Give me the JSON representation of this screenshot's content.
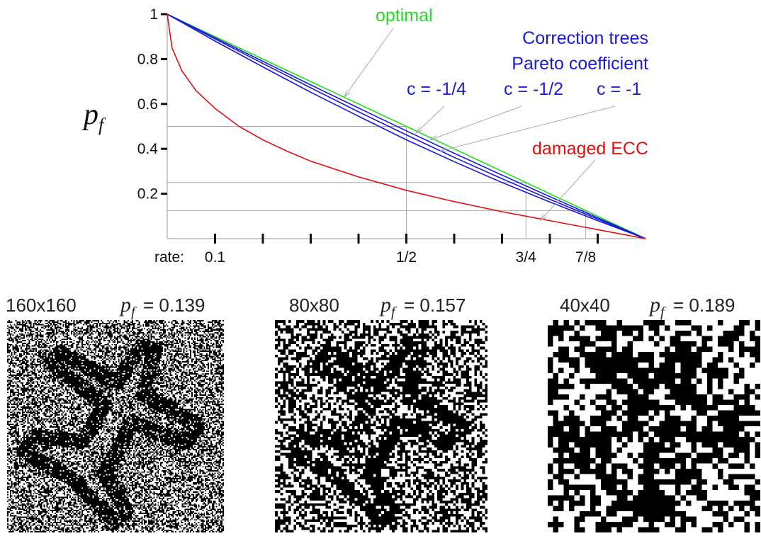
{
  "chart_data": {
    "type": "line",
    "ylabel_main": "p",
    "ylabel_sub": "f",
    "xlabel_prefix": "rate:",
    "xlim": [
      0,
      1
    ],
    "ylim": [
      0,
      1
    ],
    "y_ticks": [
      {
        "value": 1.0,
        "label": "1"
      },
      {
        "value": 0.8,
        "label": "0.8"
      },
      {
        "value": 0.6,
        "label": "0.6"
      },
      {
        "value": 0.4,
        "label": "0.4"
      },
      {
        "value": 0.2,
        "label": "0.2"
      }
    ],
    "x_ticks": [
      0.1,
      0.2,
      0.3,
      0.4,
      0.5,
      0.6,
      0.7,
      0.8,
      0.9
    ],
    "x_tick_labels": [
      {
        "value": 0.1,
        "label": "0.1"
      },
      {
        "value": 0.5,
        "label": "1/2"
      },
      {
        "value": 0.75,
        "label": "3/4"
      },
      {
        "value": 0.875,
        "label": "7/8"
      }
    ],
    "reference_lines": [
      {
        "rate": 0.5,
        "pf": 0.5
      },
      {
        "rate": 0.75,
        "pf": 0.25
      },
      {
        "rate": 0.875,
        "pf": 0.125
      }
    ],
    "series": [
      {
        "name": "optimal",
        "color": "#22dd22",
        "x": [
          0,
          0.1,
          0.2,
          0.3,
          0.4,
          0.5,
          0.6,
          0.7,
          0.8,
          0.9,
          1.0
        ],
        "y": [
          1.0,
          0.9,
          0.8,
          0.7,
          0.6,
          0.5,
          0.4,
          0.3,
          0.2,
          0.1,
          0.0
        ]
      },
      {
        "name": "c = -1/4",
        "color": "#1a1ad8",
        "x": [
          0,
          0.1,
          0.2,
          0.3,
          0.4,
          0.5,
          0.6,
          0.7,
          0.8,
          0.9,
          1.0
        ],
        "y": [
          1.0,
          0.895,
          0.79,
          0.685,
          0.582,
          0.48,
          0.38,
          0.283,
          0.187,
          0.093,
          0.0
        ]
      },
      {
        "name": "c = -1/2",
        "color": "#1a1ad8",
        "x": [
          0,
          0.1,
          0.2,
          0.3,
          0.4,
          0.5,
          0.6,
          0.7,
          0.8,
          0.9,
          1.0
        ],
        "y": [
          1.0,
          0.89,
          0.78,
          0.672,
          0.565,
          0.462,
          0.362,
          0.267,
          0.175,
          0.087,
          0.0
        ]
      },
      {
        "name": "c = -1",
        "color": "#1a1ad8",
        "x": [
          0,
          0.1,
          0.2,
          0.3,
          0.4,
          0.5,
          0.6,
          0.7,
          0.8,
          0.9,
          1.0
        ],
        "y": [
          1.0,
          0.88,
          0.765,
          0.652,
          0.545,
          0.44,
          0.343,
          0.25,
          0.163,
          0.08,
          0.0
        ]
      },
      {
        "name": "damaged ECC",
        "color": "#dd1111",
        "x": [
          0,
          0.01,
          0.03,
          0.06,
          0.1,
          0.15,
          0.2,
          0.25,
          0.3,
          0.4,
          0.5,
          0.6,
          0.7,
          0.75,
          0.8,
          0.875,
          0.9,
          0.95,
          1.0
        ],
        "y": [
          1.0,
          0.85,
          0.75,
          0.66,
          0.58,
          0.5,
          0.44,
          0.39,
          0.345,
          0.275,
          0.215,
          0.165,
          0.12,
          0.1,
          0.08,
          0.05,
          0.04,
          0.02,
          0.0
        ]
      }
    ],
    "annotations": [
      {
        "text": "optimal",
        "color": "#22dd22",
        "points_to": {
          "x": 0.37,
          "y": 0.63
        }
      },
      {
        "text": "Correction trees",
        "color": "#1a1ad8"
      },
      {
        "text": "Pareto coefficient",
        "color": "#1a1ad8"
      },
      {
        "text": "c = -1/4",
        "color": "#1a1ad8",
        "points_to": {
          "x": 0.52,
          "y": 0.47
        }
      },
      {
        "text": "c = -1/2",
        "color": "#1a1ad8",
        "points_to": {
          "x": 0.55,
          "y": 0.44
        }
      },
      {
        "text": "c = -1",
        "color": "#1a1ad8",
        "points_to": {
          "x": 0.57,
          "y": 0.39
        }
      },
      {
        "text": "damaged ECC",
        "color": "#dd1111",
        "points_to": {
          "x": 0.78,
          "y": 0.08
        }
      }
    ]
  },
  "panels": [
    {
      "size_label": "160x160",
      "pf_main": "p",
      "pf_sub": "f",
      "pf_value": "= 0.139",
      "grid": 160
    },
    {
      "size_label": "80x80",
      "pf_main": "p",
      "pf_sub": "f",
      "pf_value": "= 0.157",
      "grid": 80
    },
    {
      "size_label": "40x40",
      "pf_main": "p",
      "pf_sub": "f",
      "pf_value": "= 0.189",
      "grid": 40
    }
  ]
}
